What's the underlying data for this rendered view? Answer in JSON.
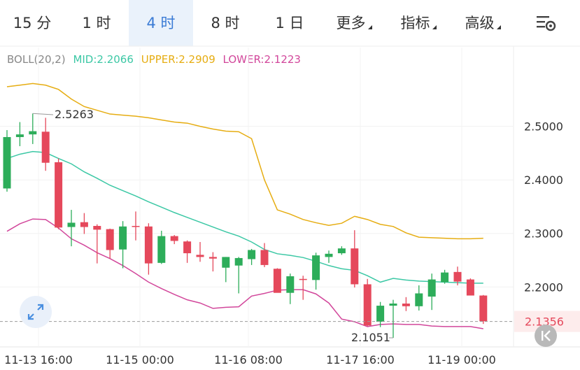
{
  "toolbar": {
    "tabs": [
      {
        "label": "15 分",
        "active": false,
        "dropdown": false
      },
      {
        "label": "1 时",
        "active": false,
        "dropdown": false
      },
      {
        "label": "4 时",
        "active": true,
        "dropdown": false
      },
      {
        "label": "8 时",
        "active": false,
        "dropdown": false
      },
      {
        "label": "1 日",
        "active": false,
        "dropdown": false
      },
      {
        "label": "更多",
        "active": false,
        "dropdown": true
      },
      {
        "label": "指标",
        "active": false,
        "dropdown": true
      },
      {
        "label": "高级",
        "active": false,
        "dropdown": true
      }
    ],
    "settings_icon": "chart-settings-gear-icon"
  },
  "indicator": {
    "name": "BOLL(20,2)",
    "mid": "MID:2.2066",
    "upper": "UPPER:2.2909",
    "lower": "LOWER:2.1223"
  },
  "colors": {
    "up": "#2dad5a",
    "down": "#e5485b",
    "mid": "#3cc8a5",
    "upper": "#e6ad12",
    "lower": "#d2479b",
    "name": "#888888",
    "current_price_bg": "#fdecec",
    "current_price_text": "#e5485b",
    "active_tab": "#3a7bd5"
  },
  "chart_data": {
    "type": "candlestick",
    "ylim": [
      2.088,
      2.608
    ],
    "y_ticks": [
      "2.5000",
      "2.4000",
      "2.3000",
      "2.2000"
    ],
    "x_ticks": [
      "11-13 16:00",
      "11-15 00:00",
      "11-16 08:00",
      "11-17 16:00",
      "11-19 00:00"
    ],
    "high_label": "2.5263",
    "low_label": "2.1051",
    "current_price": "2.1356",
    "candles": [
      {
        "o": 2.384,
        "h": 2.493,
        "l": 2.378,
        "c": 2.48
      },
      {
        "o": 2.48,
        "h": 2.508,
        "l": 2.463,
        "c": 2.485
      },
      {
        "o": 2.485,
        "h": 2.524,
        "l": 2.467,
        "c": 2.491
      },
      {
        "o": 2.49,
        "h": 2.516,
        "l": 2.417,
        "c": 2.432
      },
      {
        "o": 2.433,
        "h": 2.44,
        "l": 2.308,
        "c": 2.311
      },
      {
        "o": 2.312,
        "h": 2.344,
        "l": 2.276,
        "c": 2.32
      },
      {
        "o": 2.321,
        "h": 2.338,
        "l": 2.299,
        "c": 2.312
      },
      {
        "o": 2.314,
        "h": 2.317,
        "l": 2.244,
        "c": 2.307
      },
      {
        "o": 2.308,
        "h": 2.309,
        "l": 2.253,
        "c": 2.269
      },
      {
        "o": 2.27,
        "h": 2.323,
        "l": 2.235,
        "c": 2.313
      },
      {
        "o": 2.314,
        "h": 2.341,
        "l": 2.287,
        "c": 2.313
      },
      {
        "o": 2.313,
        "h": 2.319,
        "l": 2.223,
        "c": 2.244
      },
      {
        "o": 2.245,
        "h": 2.305,
        "l": 2.243,
        "c": 2.295
      },
      {
        "o": 2.295,
        "h": 2.297,
        "l": 2.28,
        "c": 2.286
      },
      {
        "o": 2.285,
        "h": 2.287,
        "l": 2.245,
        "c": 2.263
      },
      {
        "o": 2.26,
        "h": 2.284,
        "l": 2.247,
        "c": 2.256
      },
      {
        "o": 2.256,
        "h": 2.265,
        "l": 2.229,
        "c": 2.253
      },
      {
        "o": 2.236,
        "h": 2.256,
        "l": 2.209,
        "c": 2.256
      },
      {
        "o": 2.24,
        "h": 2.256,
        "l": 2.188,
        "c": 2.254
      },
      {
        "o": 2.252,
        "h": 2.271,
        "l": 2.241,
        "c": 2.269
      },
      {
        "o": 2.269,
        "h": 2.282,
        "l": 2.237,
        "c": 2.241
      },
      {
        "o": 2.234,
        "h": 2.235,
        "l": 2.19,
        "c": 2.189
      },
      {
        "o": 2.189,
        "h": 2.225,
        "l": 2.168,
        "c": 2.22
      },
      {
        "o": 2.215,
        "h": 2.221,
        "l": 2.176,
        "c": 2.213
      },
      {
        "o": 2.213,
        "h": 2.264,
        "l": 2.195,
        "c": 2.259
      },
      {
        "o": 2.256,
        "h": 2.268,
        "l": 2.245,
        "c": 2.262
      },
      {
        "o": 2.263,
        "h": 2.276,
        "l": 2.26,
        "c": 2.272
      },
      {
        "o": 2.272,
        "h": 2.306,
        "l": 2.199,
        "c": 2.205
      },
      {
        "o": 2.205,
        "h": 2.215,
        "l": 2.127,
        "c": 2.128
      },
      {
        "o": 2.135,
        "h": 2.172,
        "l": 2.125,
        "c": 2.165
      },
      {
        "o": 2.165,
        "h": 2.176,
        "l": 2.105,
        "c": 2.169
      },
      {
        "o": 2.169,
        "h": 2.181,
        "l": 2.155,
        "c": 2.164
      },
      {
        "o": 2.164,
        "h": 2.203,
        "l": 2.156,
        "c": 2.188
      },
      {
        "o": 2.182,
        "h": 2.225,
        "l": 2.157,
        "c": 2.214
      },
      {
        "o": 2.209,
        "h": 2.232,
        "l": 2.206,
        "c": 2.227
      },
      {
        "o": 2.228,
        "h": 2.238,
        "l": 2.203,
        "c": 2.21
      },
      {
        "o": 2.214,
        "h": 2.216,
        "l": 2.185,
        "c": 2.184
      },
      {
        "o": 2.184,
        "h": 2.185,
        "l": 2.131,
        "c": 2.136
      }
    ],
    "boll": {
      "upper": [
        2.574,
        2.577,
        2.58,
        2.577,
        2.569,
        2.551,
        2.537,
        2.53,
        2.523,
        2.521,
        2.519,
        2.516,
        2.512,
        2.508,
        2.506,
        2.5,
        2.495,
        2.491,
        2.49,
        2.477,
        2.4,
        2.344,
        2.336,
        2.326,
        2.32,
        2.315,
        2.319,
        2.332,
        2.326,
        2.317,
        2.313,
        2.301,
        2.293,
        2.292,
        2.291,
        2.29,
        2.29,
        2.291
      ],
      "mid": [
        2.44,
        2.448,
        2.453,
        2.451,
        2.44,
        2.43,
        2.415,
        2.403,
        2.39,
        2.38,
        2.37,
        2.359,
        2.349,
        2.339,
        2.33,
        2.321,
        2.312,
        2.303,
        2.295,
        2.284,
        2.27,
        2.262,
        2.259,
        2.255,
        2.248,
        2.24,
        2.234,
        2.231,
        2.221,
        2.209,
        2.216,
        2.213,
        2.211,
        2.21,
        2.209,
        2.208,
        2.207,
        2.207
      ],
      "lower": [
        2.304,
        2.318,
        2.327,
        2.326,
        2.31,
        2.29,
        2.278,
        2.264,
        2.253,
        2.24,
        2.225,
        2.209,
        2.197,
        2.186,
        2.176,
        2.17,
        2.16,
        2.162,
        2.163,
        2.183,
        2.188,
        2.194,
        2.195,
        2.195,
        2.187,
        2.17,
        2.14,
        2.135,
        2.126,
        2.13,
        2.131,
        2.13,
        2.13,
        2.127,
        2.126,
        2.126,
        2.126,
        2.122
      ]
    }
  }
}
